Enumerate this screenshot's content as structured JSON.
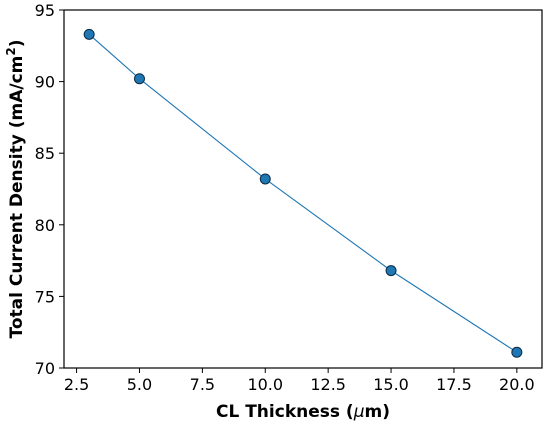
{
  "chart_data": {
    "type": "line",
    "title": "",
    "xlabel": "CL Thickness (",
    "xlabel_symbol": "μ",
    "xlabel_unit": "m)",
    "ylabel": "Total Current Density (mA/cm",
    "ylabel_superscript": "2",
    "ylabel_close": ")",
    "xlim": [
      2.0,
      21.0
    ],
    "ylim": [
      70,
      95
    ],
    "x_ticks": [
      "2.5",
      "5.0",
      "7.5",
      "10.0",
      "12.5",
      "15.0",
      "17.5",
      "20.0"
    ],
    "y_ticks": [
      "70",
      "75",
      "80",
      "85",
      "90",
      "95"
    ],
    "grid": false,
    "legend": "none",
    "colors": {
      "line": "#1f77b4",
      "marker": "#1f77b4",
      "marker_edge": "#0b2a45"
    },
    "series": [
      {
        "x": [
          3,
          5,
          10,
          15,
          20
        ],
        "y": [
          93.3,
          90.2,
          83.2,
          76.8,
          71.1
        ]
      }
    ]
  }
}
